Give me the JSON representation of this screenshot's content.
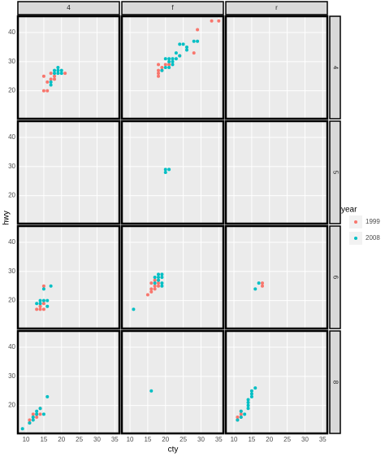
{
  "chart_data": {
    "type": "scatter",
    "x_label": "cty",
    "y_label": "hwy",
    "legend_title": "year",
    "legend": "right",
    "grid": true,
    "xlim": [
      7.7,
      36.3
    ],
    "xticks": [
      10,
      15,
      20,
      25,
      30,
      35
    ],
    "ylim": [
      10.4,
      45.6
    ],
    "yticks": [
      20,
      30,
      40
    ],
    "facet_cols": [
      "4",
      "f",
      "r"
    ],
    "facet_rows": [
      "4",
      "5",
      "6",
      "8"
    ],
    "series": [
      {
        "name": "1999",
        "color": "#f8766d"
      },
      {
        "name": "2008",
        "color": "#00bfc4"
      }
    ],
    "panels": [
      [
        [
          {
            "x": [
              18,
              16,
              15,
              17,
              15,
              18,
              17,
              16,
              21
            ],
            "values": [
              25,
              20,
              20,
              24,
              25,
              24,
              26,
              23,
              26
            ]
          },
          {
            "x": [
              18,
              18,
              19,
              19,
              20,
              20,
              17,
              17,
              19
            ],
            "values": [
              26,
              27,
              27,
              28,
              26,
              27,
              22,
              23,
              26
            ]
          }
        ],
        [
          {
            "x": [
              18,
              21,
              18,
              18,
              19,
              21,
              24,
              28,
              33,
              35,
              29,
              19,
              20,
              18
            ],
            "values": [
              29,
              29,
              26,
              25,
              27,
              29,
              32,
              33,
              44,
              44,
              41,
              28,
              29,
              27
            ]
          },
          {
            "x": [
              20,
              21,
              22,
              21,
              22,
              23,
              24,
              25,
              26,
              24,
              28,
              29,
              19,
              20,
              21,
              22,
              26,
              23
            ],
            "values": [
              31,
              30,
              29,
              31,
              30,
              31,
              32,
              36,
              35,
              36,
              37,
              37,
              27,
              28,
              28,
              31,
              34,
              33
            ]
          }
        ],
        [
          {
            "x": [],
            "values": []
          },
          {
            "x": [],
            "values": []
          }
        ]
      ],
      [
        [
          {
            "x": [],
            "values": []
          },
          {
            "x": [],
            "values": []
          }
        ],
        [
          {
            "x": [],
            "values": []
          },
          {
            "x": [
              20,
              20,
              21
            ],
            "values": [
              28,
              29,
              29
            ]
          }
        ],
        [
          {
            "x": [],
            "values": []
          },
          {
            "x": [],
            "values": []
          }
        ]
      ],
      [
        [
          {
            "x": [
              13,
              14,
              15,
              15,
              14,
              15
            ],
            "values": [
              17,
              17,
              17,
              19,
              18,
              25
            ]
          },
          {
            "x": [
              14,
              15,
              16,
              17,
              15,
              16,
              13,
              14
            ],
            "values": [
              19,
              20,
              20,
              25,
              24,
              18,
              19,
              20
            ]
          }
        ],
        [
          {
            "x": [
              15,
              16,
              17,
              16,
              17,
              18,
              17,
              18,
              16
            ],
            "values": [
              22,
              23,
              25,
              26,
              24,
              26,
              27,
              25,
              24
            ]
          },
          {
            "x": [
              11,
              17,
              18,
              19,
              19,
              18,
              19,
              19,
              17,
              18
            ],
            "values": [
              17,
              26,
              27,
              28,
              29,
              28,
              26,
              25,
              28,
              29
            ]
          }
        ],
        [
          {
            "x": [
              18,
              18
            ],
            "values": [
              26,
              25
            ]
          },
          {
            "x": [
              16,
              17
            ],
            "values": [
              24,
              26
            ]
          }
        ]
      ],
      [
        [
          {
            "x": [
              11,
              12,
              13,
              14,
              13,
              12,
              14,
              11
            ],
            "values": [
              15,
              16,
              17,
              17,
              16,
              17,
              19,
              14
            ]
          },
          {
            "x": [
              9,
              11,
              12,
              13,
              14,
              15,
              16,
              13,
              12
            ],
            "values": [
              12,
              14,
              16,
              17,
              19,
              17,
              23,
              18,
              15
            ]
          }
        ],
        [
          {
            "x": [],
            "values": []
          },
          {
            "x": [
              16
            ],
            "values": [
              25
            ]
          }
        ],
        [
          {
            "x": [
              11,
              12,
              12,
              11,
              12
            ],
            "values": [
              15,
              16,
              17,
              16,
              18
            ]
          },
          {
            "x": [
              11,
              12,
              13,
              14,
              14,
              15,
              15,
              15,
              16,
              14,
              12,
              14
            ],
            "values": [
              15,
              18,
              17,
              20,
              22,
              23,
              24,
              25,
              26,
              21,
              16,
              19
            ]
          }
        ]
      ]
    ]
  }
}
